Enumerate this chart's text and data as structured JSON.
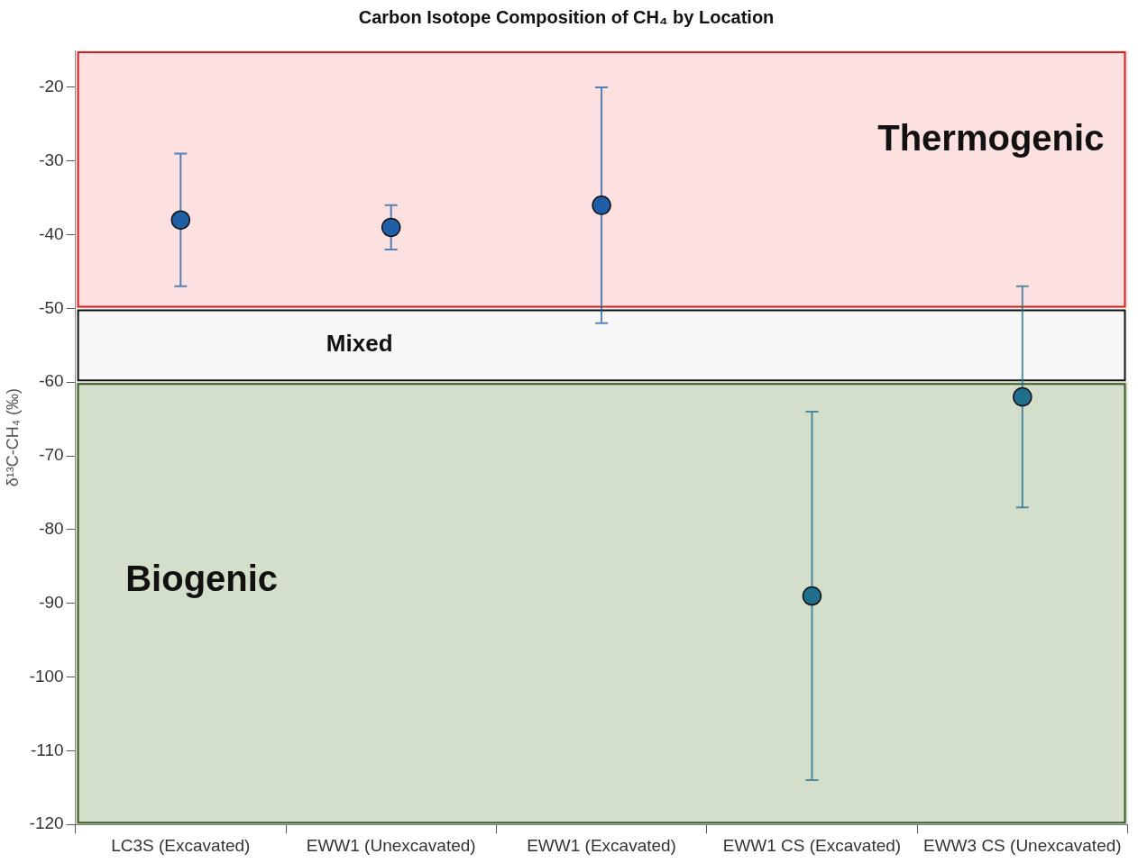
{
  "chart_data": {
    "type": "scatter",
    "title": "Carbon Isotope Composition of CH₄ by Location",
    "ylabel": "δ¹³C-CH₄ (‰)",
    "categories": [
      "LC3S (Excavated)",
      "EWW1 (Unexcavated)",
      "EWW1 (Excavated)",
      "EWW1 CS (Excavated)",
      "EWW3 CS (Unexcavated)"
    ],
    "values": [
      -38,
      -39,
      -36,
      -89,
      -62
    ],
    "errors": [
      [
        -47,
        -29
      ],
      [
        -42,
        -36
      ],
      [
        -52,
        -20
      ],
      [
        -114,
        -64
      ],
      [
        -77,
        -47
      ]
    ],
    "colors": [
      "#1f5fa6",
      "#1f5fa6",
      "#1f5fa6",
      "#1f6f8c",
      "#1f6f8c"
    ],
    "ylim": [
      -120,
      -15
    ],
    "yticks": [
      -120,
      -110,
      -100,
      -90,
      -80,
      -70,
      -60,
      -50,
      -40,
      -30,
      -20
    ],
    "bands": [
      {
        "axis": "y",
        "from": -50,
        "to": -15,
        "label": "Thermogenic",
        "color": "#fde0e0"
      },
      {
        "axis": "y",
        "from": -60,
        "to": -50,
        "label": "Mixed",
        "color": "#f7f7f7"
      },
      {
        "axis": "y",
        "from": -120,
        "to": -60,
        "label": "Biogenic",
        "color": "#d3dfca"
      }
    ],
    "marker": "circle",
    "grid": false,
    "legend": false
  }
}
